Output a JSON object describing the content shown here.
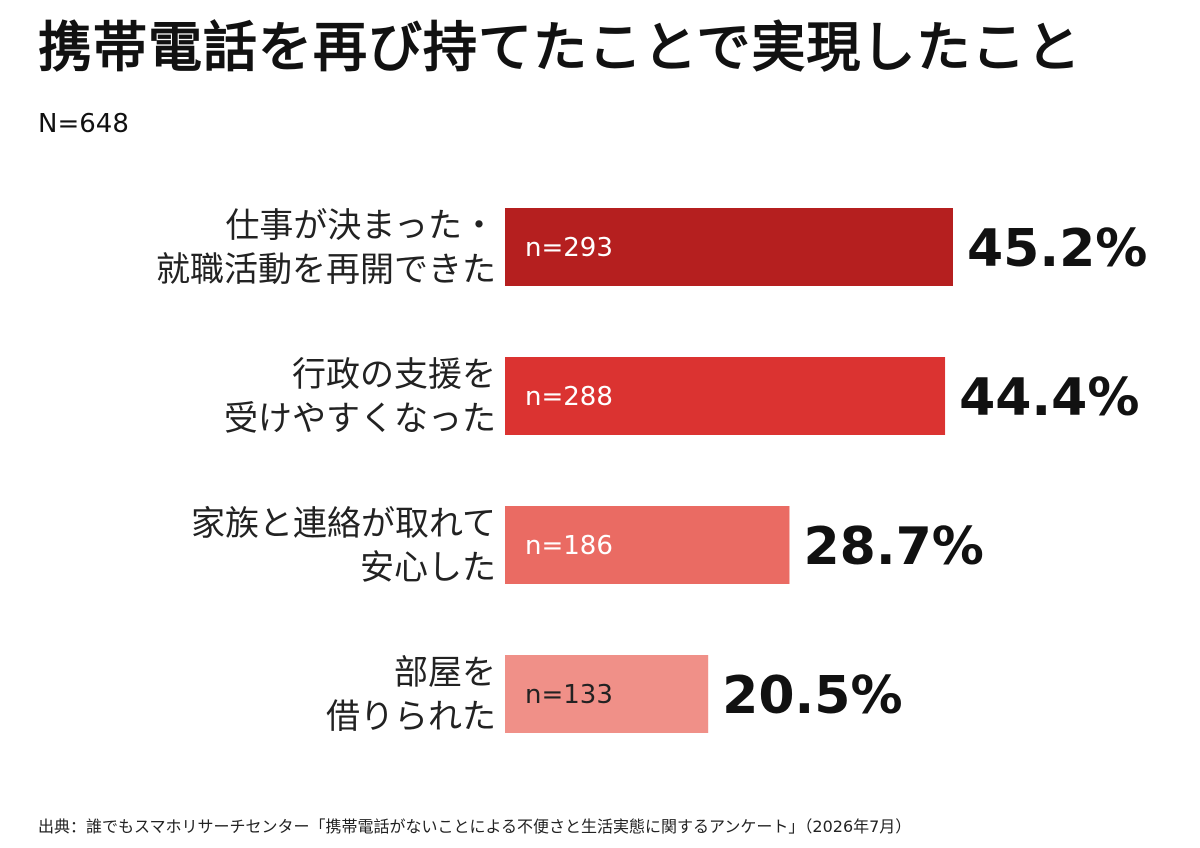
{
  "title": "携帯電話を再び持てたことで実現したこと",
  "sample_size": "N=648",
  "source": "出典：誰でもスマホリサーチセンター「携帯電話がないことによる不便さと生活実態に関するアンケート」（2026年7月）",
  "chart_data": {
    "type": "bar",
    "orientation": "horizontal",
    "title": "携帯電話を再び持てたことで実現したこと",
    "categories": [
      [
        "仕事が決まった・",
        "就職活動を再開できた"
      ],
      [
        "行政の支援を",
        "受けやすくなった"
      ],
      [
        "家族と連絡が取れて",
        "安心した"
      ],
      [
        "部屋を",
        "借りられた"
      ]
    ],
    "values": [
      45.2,
      44.4,
      28.7,
      20.5
    ],
    "counts": [
      293,
      288,
      186,
      133
    ],
    "count_labels": [
      "n=293",
      "n=288",
      "n=186",
      "n=133"
    ],
    "value_labels": [
      "45.2%",
      "44.4%",
      "28.7%",
      "20.5%"
    ],
    "bar_colors": [
      "#b51f1f",
      "#db3331",
      "#ea6b63",
      "#f09088"
    ],
    "count_label_colors": [
      "#ffffff",
      "#ffffff",
      "#ffffff",
      "#222222"
    ],
    "unit": "%",
    "grid": false,
    "legend": "none"
  }
}
